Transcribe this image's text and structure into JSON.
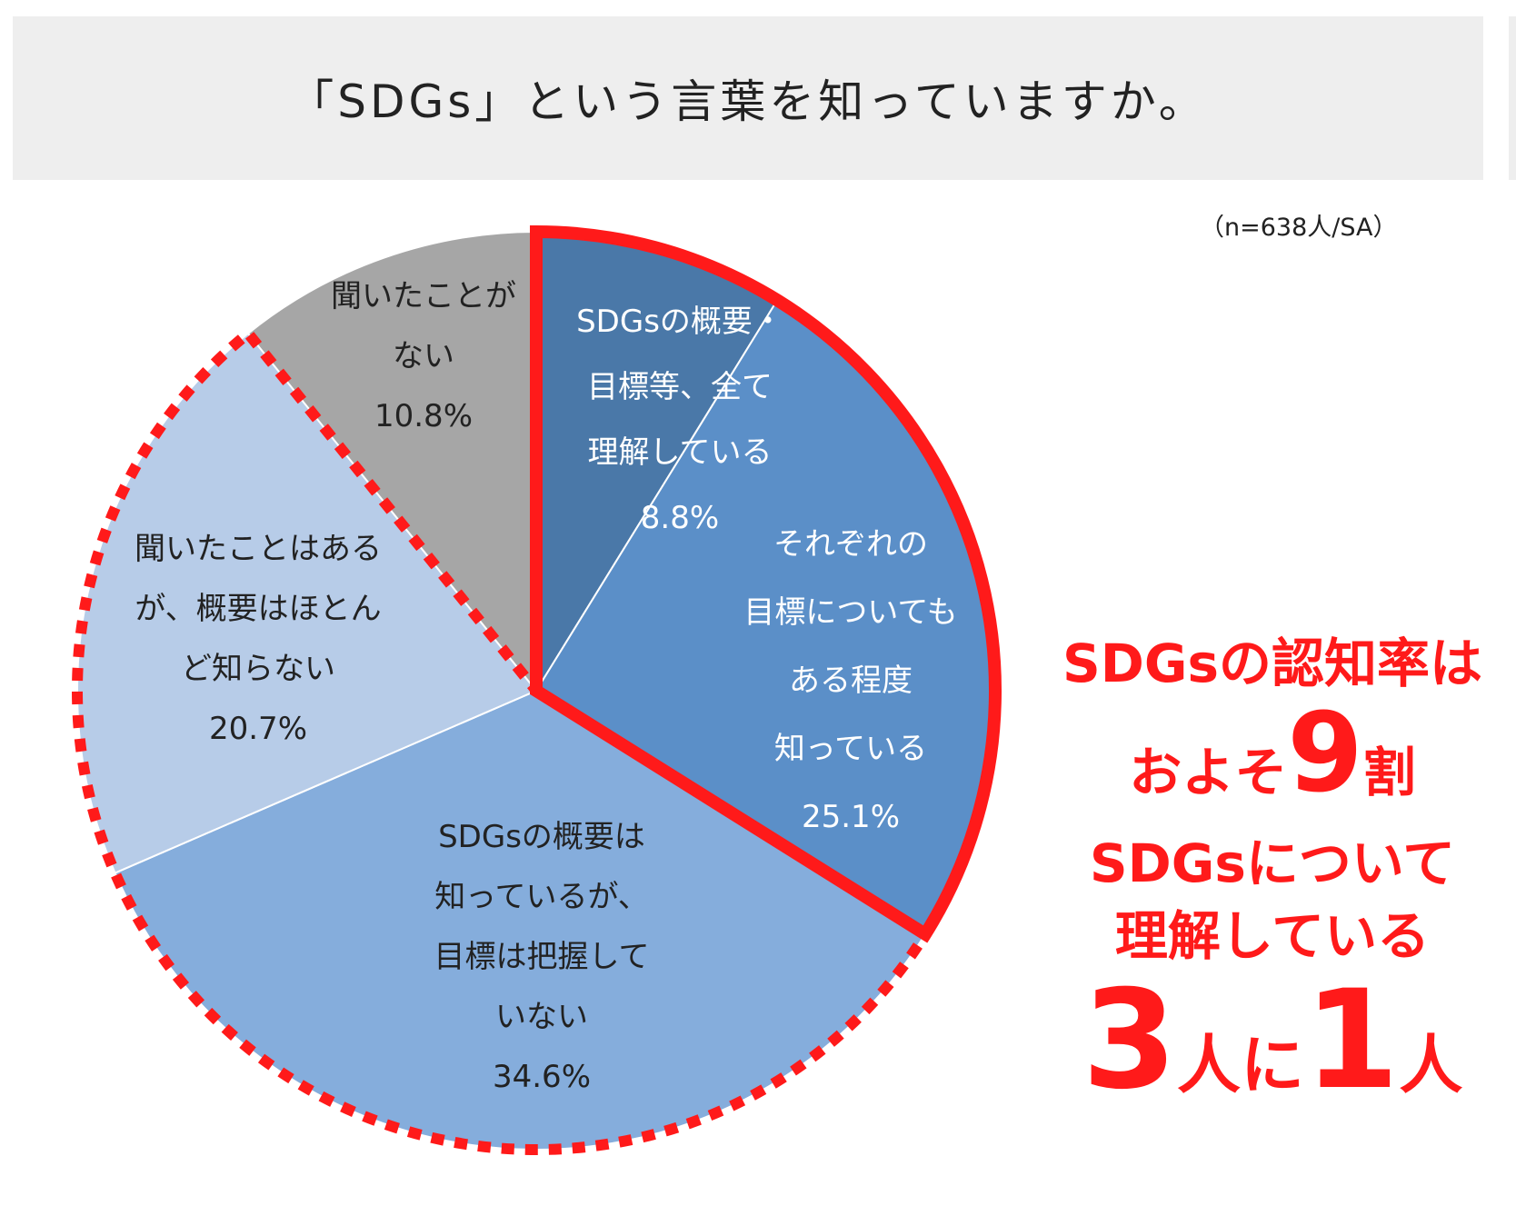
{
  "header": {
    "title": "「SDGs」という言葉を知っていますか。",
    "note": "（n=638人/SA）"
  },
  "chart_data": {
    "type": "pie",
    "title": "「SDGs」という言葉を知っていますか。",
    "start": "top, clockwise",
    "slices": [
      {
        "lines": [
          "SDGsの概要・",
          "目標等、全て",
          "理解している",
          "8.8%"
        ],
        "value": 8.8,
        "color": "#4a78a8",
        "text_color": "#ffffff"
      },
      {
        "lines": [
          "それぞれの",
          "目標についても",
          "ある程度",
          "知っている",
          "25.1%"
        ],
        "value": 25.1,
        "color": "#5b8fc8",
        "text_color": "#ffffff"
      },
      {
        "lines": [
          "SDGsの概要は",
          "知っているが、",
          "目標は把握して",
          "いない",
          "34.6%"
        ],
        "value": 34.6,
        "color": "#85addc",
        "text_color": "#222222"
      },
      {
        "lines": [
          "聞いたことはある",
          "が、概要はほとん",
          "ど知らない",
          "20.7%"
        ],
        "value": 20.7,
        "color": "#b7cce8",
        "text_color": "#222222"
      },
      {
        "lines": [
          "聞いたことが",
          "ない",
          "10.8%"
        ],
        "value": 10.8,
        "color": "#a6a6a6",
        "text_color": "#222222"
      }
    ],
    "highlight_color": "#ff1a1a"
  },
  "callout": {
    "line1": "SDGsの認知率は",
    "line2_pre": "およそ",
    "line2_num": "9",
    "line2_post": "割",
    "line3": "SDGsについて",
    "line4": "理解している",
    "line5_num1": "3",
    "line5_mid": "人に",
    "line5_num2": "1",
    "line5_post": "人"
  }
}
